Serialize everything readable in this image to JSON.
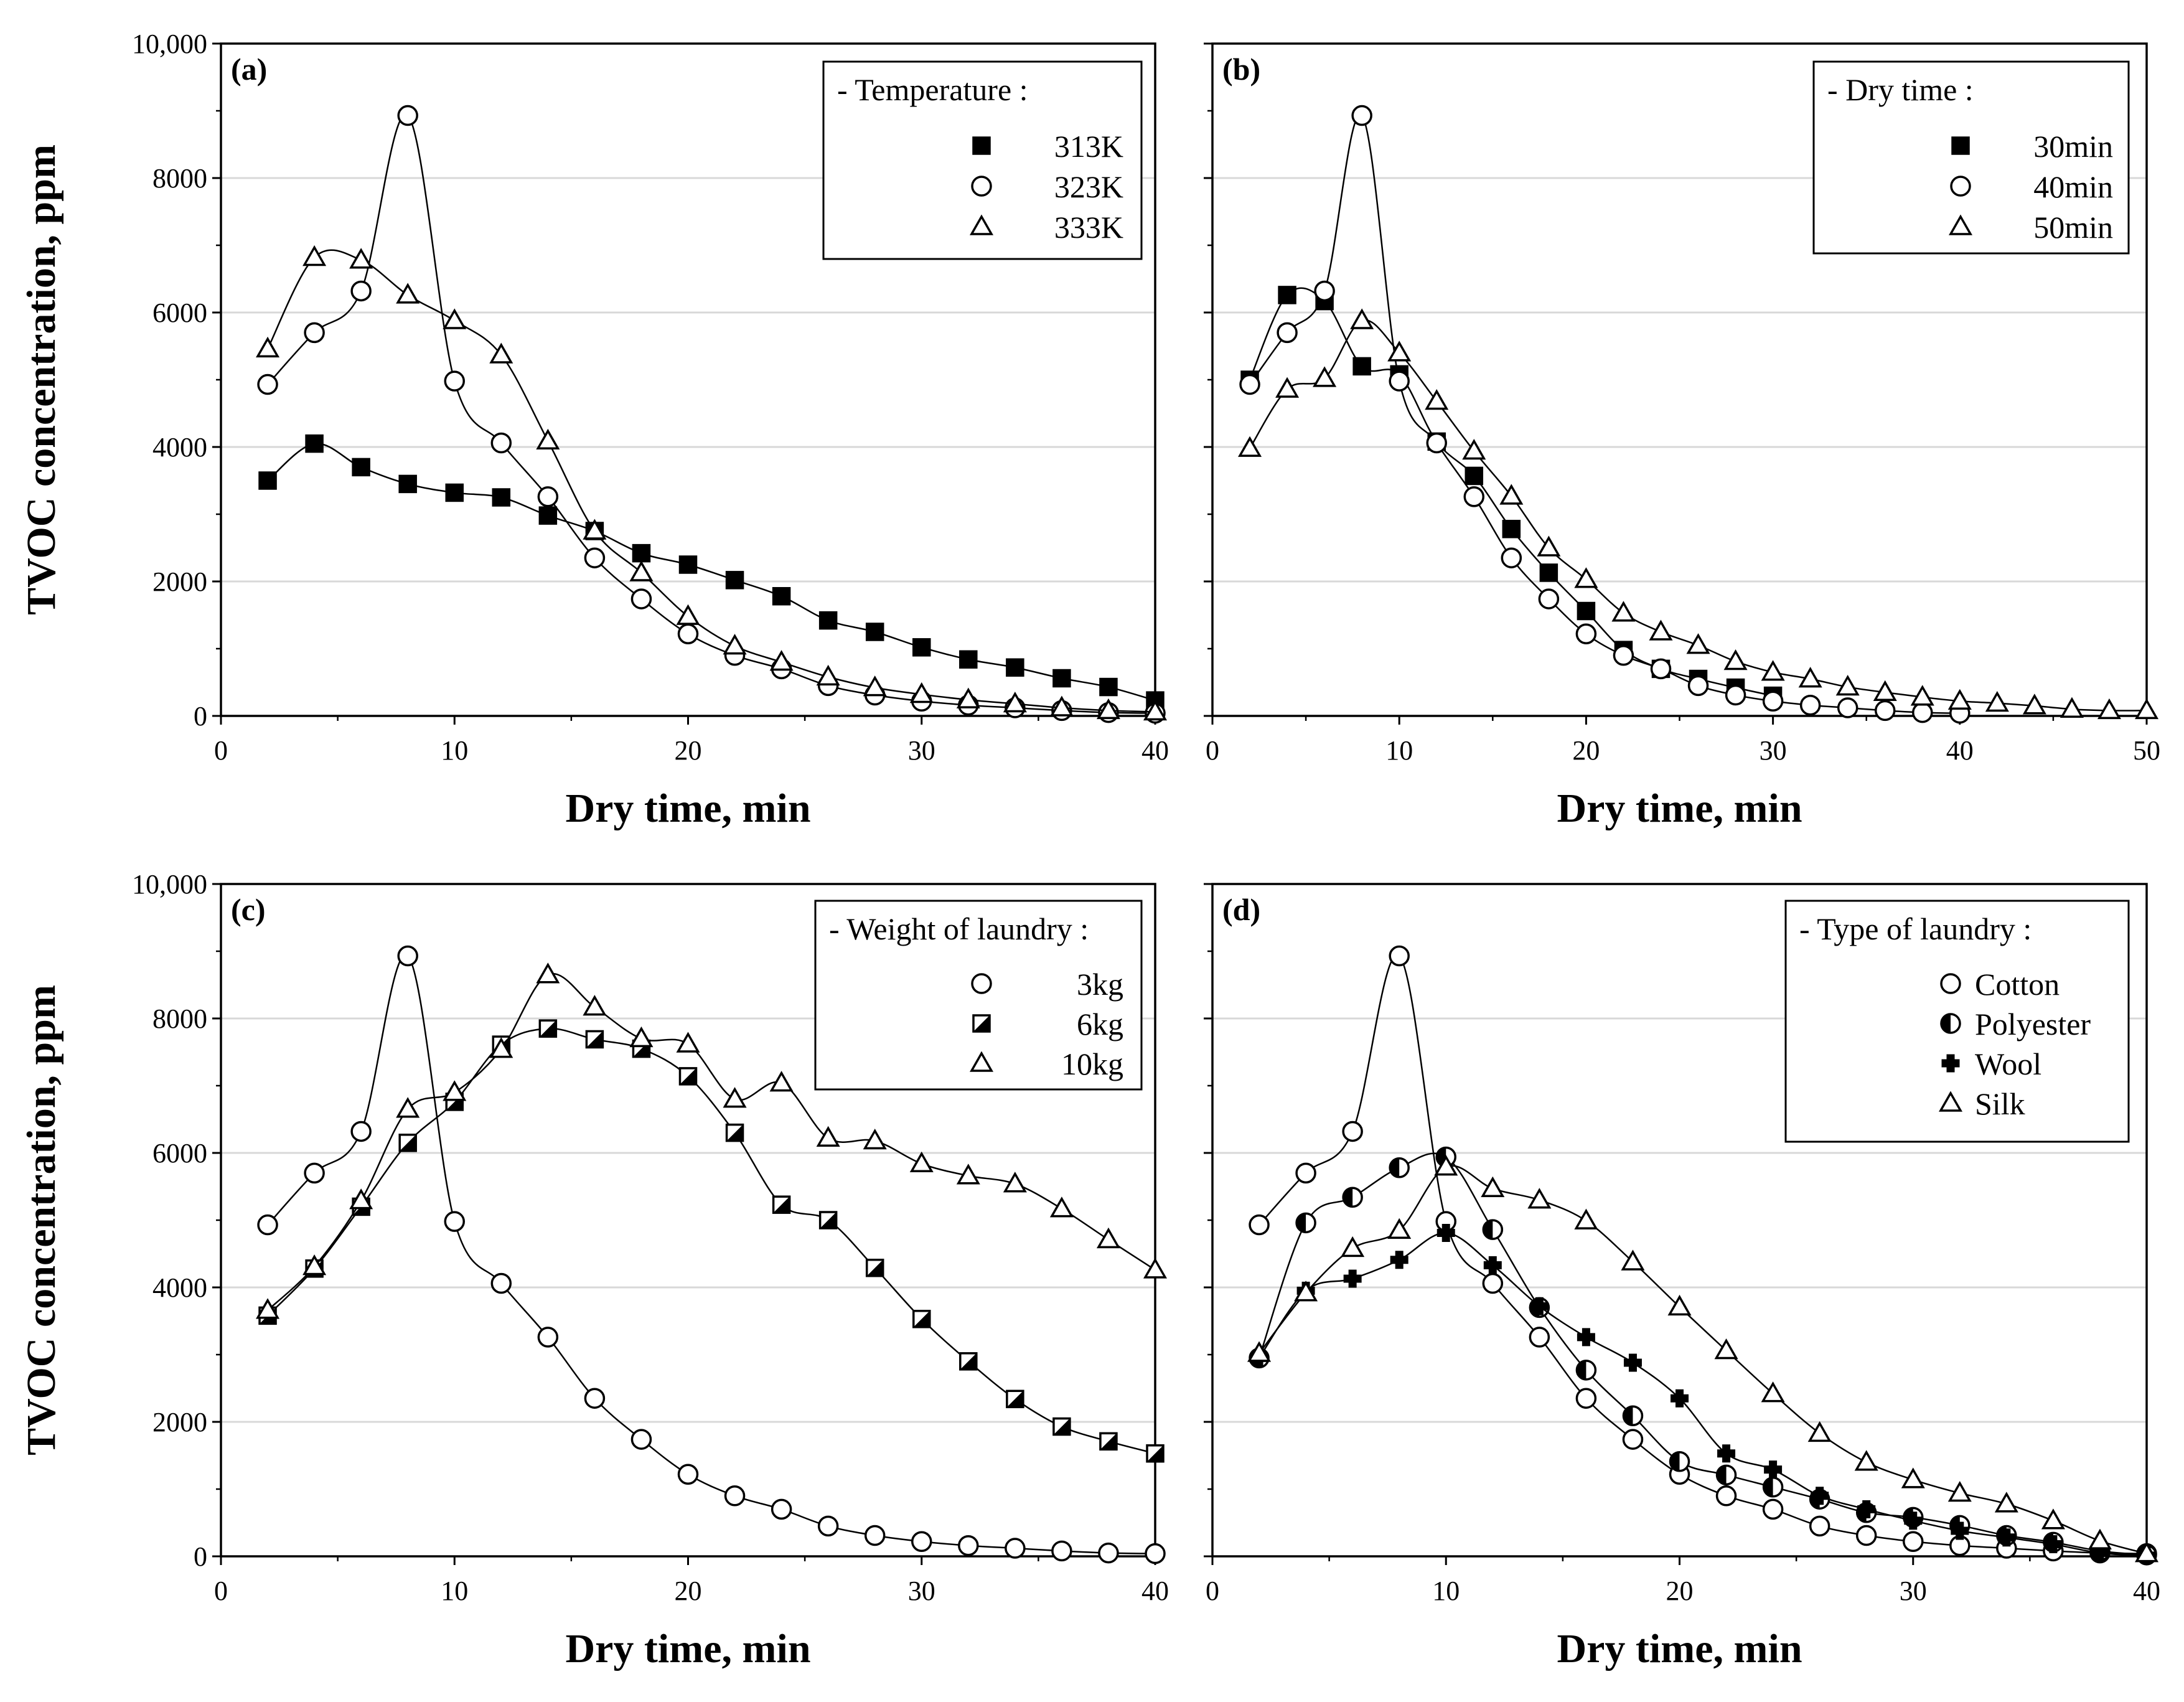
{
  "chart_data": [
    {
      "type": "line",
      "panel_label": "(a)",
      "xlabel": "Dry time, min",
      "ylabel": "TVOC concentration, ppm",
      "xlim": [
        0,
        40
      ],
      "ylim": [
        0,
        10000
      ],
      "xticks": [
        "0",
        "10",
        "20",
        "30",
        "40"
      ],
      "yticks": [
        "0",
        "2000",
        "4000",
        "6000",
        "8000",
        "10,000"
      ],
      "grid": true,
      "legend_title": "- Temperature :",
      "legend_placement": "top-right",
      "series": [
        {
          "name": "313K",
          "marker": "square-filled",
          "x": [
            2,
            4,
            6,
            8,
            10,
            12,
            14,
            16,
            18,
            20,
            22,
            24,
            26,
            28,
            30,
            32,
            34,
            36,
            38,
            40
          ],
          "values": [
            3500,
            4050,
            3700,
            3450,
            3320,
            3250,
            2980,
            2750,
            2420,
            2250,
            2020,
            1780,
            1420,
            1250,
            1020,
            840,
            720,
            560,
            430,
            230
          ]
        },
        {
          "name": "323K",
          "marker": "circle-open",
          "x": [
            2,
            4,
            6,
            8,
            10,
            12,
            14,
            16,
            18,
            20,
            22,
            24,
            26,
            28,
            30,
            32,
            34,
            36,
            38,
            40
          ],
          "values": [
            4930,
            5700,
            6320,
            8930,
            4980,
            4060,
            3260,
            2350,
            1740,
            1220,
            900,
            700,
            450,
            310,
            220,
            160,
            120,
            80,
            50,
            40
          ]
        },
        {
          "name": "333K",
          "marker": "triangle-open",
          "x": [
            2,
            4,
            6,
            8,
            10,
            12,
            14,
            16,
            18,
            20,
            22,
            24,
            26,
            28,
            30,
            32,
            34,
            36,
            38,
            40
          ],
          "values": [
            5460,
            6820,
            6780,
            6260,
            5880,
            5370,
            4090,
            2750,
            2130,
            1480,
            1040,
            800,
            580,
            420,
            320,
            240,
            180,
            120,
            80,
            60
          ]
        }
      ]
    },
    {
      "type": "line",
      "panel_label": "(b)",
      "xlabel": "Dry time, min",
      "ylabel": "",
      "xlim": [
        0,
        50
      ],
      "ylim": [
        0,
        10000
      ],
      "xticks": [
        "0",
        "10",
        "20",
        "30",
        "40",
        "50"
      ],
      "yticks": [],
      "grid": true,
      "legend_title": "- Dry time :",
      "legend_placement": "top-right",
      "series": [
        {
          "name": "30min",
          "marker": "square-filled",
          "x": [
            2,
            4,
            6,
            8,
            10,
            12,
            14,
            16,
            18,
            20,
            22,
            24,
            26,
            28,
            30
          ],
          "values": [
            5000,
            6260,
            6170,
            5200,
            5080,
            4080,
            3570,
            2780,
            2130,
            1560,
            980,
            700,
            550,
            420,
            300
          ]
        },
        {
          "name": "40min",
          "marker": "circle-open",
          "x": [
            2,
            4,
            6,
            8,
            10,
            12,
            14,
            16,
            18,
            20,
            22,
            24,
            26,
            28,
            30,
            32,
            34,
            36,
            38,
            40
          ],
          "values": [
            4930,
            5700,
            6320,
            8930,
            4980,
            4060,
            3260,
            2350,
            1740,
            1220,
            900,
            700,
            450,
            310,
            220,
            160,
            120,
            80,
            50,
            40
          ]
        },
        {
          "name": "50min",
          "marker": "triangle-open",
          "x": [
            2,
            4,
            6,
            8,
            10,
            12,
            14,
            16,
            18,
            20,
            22,
            24,
            26,
            28,
            30,
            32,
            34,
            36,
            38,
            40,
            42,
            44,
            46,
            48,
            50
          ],
          "values": [
            3980,
            4860,
            5020,
            5880,
            5400,
            4680,
            3940,
            3270,
            2500,
            2030,
            1530,
            1250,
            1050,
            810,
            650,
            550,
            430,
            350,
            280,
            220,
            190,
            150,
            100,
            80,
            80
          ]
        }
      ]
    },
    {
      "type": "line",
      "panel_label": "(c)",
      "xlabel": "Dry time, min",
      "ylabel": "TVOC concentration, ppm",
      "xlim": [
        0,
        40
      ],
      "ylim": [
        0,
        10000
      ],
      "xticks": [
        "0",
        "10",
        "20",
        "30",
        "40"
      ],
      "yticks": [
        "0",
        "2000",
        "4000",
        "6000",
        "8000",
        "10,000"
      ],
      "grid": true,
      "legend_title": "- Weight of laundry :",
      "legend_placement": "top-right",
      "series": [
        {
          "name": "3kg",
          "marker": "circle-open",
          "x": [
            2,
            4,
            6,
            8,
            10,
            12,
            14,
            16,
            18,
            20,
            22,
            24,
            26,
            28,
            30,
            32,
            34,
            36,
            38,
            40
          ],
          "values": [
            4930,
            5700,
            6320,
            8930,
            4980,
            4060,
            3260,
            2350,
            1740,
            1220,
            900,
            700,
            450,
            310,
            220,
            160,
            120,
            80,
            50,
            40
          ]
        },
        {
          "name": "6kg",
          "marker": "square-half",
          "x": [
            2,
            4,
            6,
            8,
            10,
            12,
            14,
            16,
            18,
            20,
            22,
            24,
            26,
            28,
            30,
            32,
            34,
            36,
            38,
            40
          ],
          "values": [
            3580,
            4280,
            5200,
            6150,
            6760,
            7610,
            7850,
            7690,
            7550,
            7140,
            6300,
            5230,
            5000,
            4290,
            3530,
            2900,
            2340,
            1930,
            1710,
            1530
          ]
        },
        {
          "name": "10kg",
          "marker": "triangle-open",
          "x": [
            2,
            4,
            6,
            8,
            10,
            12,
            14,
            16,
            18,
            20,
            22,
            24,
            26,
            28,
            30,
            32,
            34,
            36,
            38,
            40
          ],
          "values": [
            3660,
            4310,
            5290,
            6650,
            6900,
            7540,
            8650,
            8170,
            7700,
            7620,
            6800,
            7040,
            6220,
            6180,
            5840,
            5660,
            5540,
            5170,
            4710,
            4260
          ]
        }
      ]
    },
    {
      "type": "line",
      "panel_label": "(d)",
      "xlabel": "Dry time, min",
      "ylabel": "",
      "xlim": [
        0,
        40
      ],
      "ylim": [
        0,
        10000
      ],
      "xticks": [
        "0",
        "10",
        "20",
        "30",
        "40"
      ],
      "yticks": [],
      "grid": true,
      "legend_title": "- Type of laundry :",
      "legend_placement": "top-right",
      "series": [
        {
          "name": "Cotton",
          "marker": "circle-open",
          "x": [
            2,
            4,
            6,
            8,
            10,
            12,
            14,
            16,
            18,
            20,
            22,
            24,
            26,
            28,
            30,
            32,
            34,
            36,
            38,
            40
          ],
          "values": [
            4930,
            5700,
            6320,
            8930,
            4980,
            4060,
            3260,
            2350,
            1740,
            1220,
            900,
            700,
            450,
            310,
            220,
            160,
            120,
            80,
            50,
            40
          ]
        },
        {
          "name": "Polyester",
          "marker": "circle-half",
          "x": [
            2,
            4,
            6,
            8,
            10,
            12,
            14,
            16,
            18,
            20,
            22,
            24,
            26,
            28,
            30,
            32,
            34,
            36,
            38,
            40
          ],
          "values": [
            2950,
            4960,
            5340,
            5780,
            5940,
            4860,
            3700,
            2770,
            2090,
            1410,
            1210,
            1030,
            850,
            650,
            580,
            460,
            310,
            210,
            80,
            20
          ]
        },
        {
          "name": "Wool",
          "marker": "cross-filled",
          "x": [
            2,
            4,
            6,
            8,
            10,
            12,
            14,
            16,
            18,
            20,
            22,
            24,
            26,
            28,
            30,
            32,
            34,
            36,
            38,
            40
          ],
          "values": [
            2950,
            3950,
            4130,
            4410,
            4810,
            4330,
            3720,
            3260,
            2880,
            2350,
            1530,
            1290,
            900,
            700,
            530,
            380,
            280,
            180,
            50,
            10
          ]
        },
        {
          "name": "Silk",
          "marker": "triangle-open",
          "x": [
            2,
            4,
            6,
            8,
            10,
            12,
            14,
            16,
            18,
            20,
            22,
            24,
            26,
            28,
            30,
            32,
            34,
            36,
            38,
            40
          ],
          "values": [
            3020,
            3920,
            4580,
            4850,
            5790,
            5470,
            5300,
            4990,
            4380,
            3710,
            3060,
            2420,
            1830,
            1400,
            1140,
            940,
            780,
            530,
            230,
            40
          ]
        }
      ]
    }
  ]
}
